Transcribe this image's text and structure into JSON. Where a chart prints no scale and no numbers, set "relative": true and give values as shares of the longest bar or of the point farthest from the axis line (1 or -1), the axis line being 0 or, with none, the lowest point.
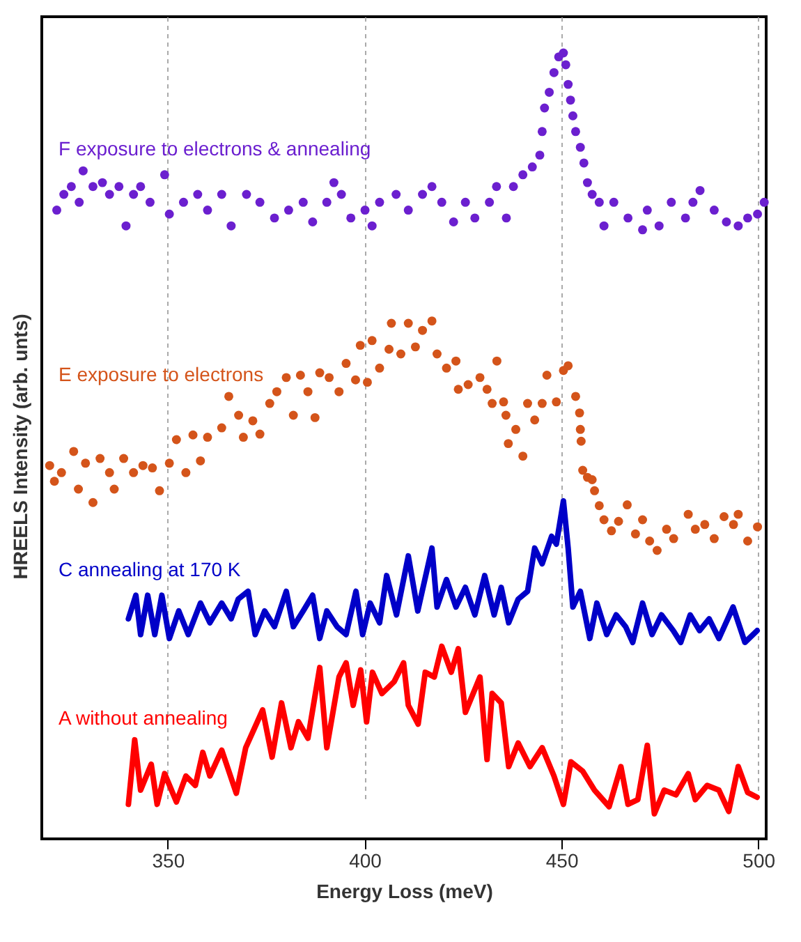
{
  "chart_data": {
    "type": "line",
    "xlabel": "Energy Loss (meV)",
    "ylabel": "HREELS Intensity (arb. unts)",
    "relative": true,
    "xlim": [
      318,
      502
    ],
    "xticks": [
      350,
      400,
      450,
      500
    ],
    "grid": "x",
    "series": [
      {
        "name": "F exposure to electrons & annealing",
        "type": "scatter",
        "marker": "circle",
        "color": "#6b1fcf",
        "x": [
          321.8,
          323.6,
          325.5,
          327.5,
          328.5,
          331,
          333.4,
          335.2,
          337.6,
          339.4,
          341.3,
          343.1,
          345.5,
          349.2,
          350.4,
          354,
          357.6,
          360.1,
          363.7,
          366.1,
          370,
          373.4,
          377.1,
          380.7,
          384.4,
          386.8,
          390.4,
          392.2,
          394.1,
          396.5,
          400.1,
          401.9,
          403.8,
          408,
          411.1,
          414.7,
          417.1,
          419.6,
          422.6,
          425.6,
          428,
          431.7,
          433.5,
          436,
          437.8,
          440.2,
          442.6,
          444.5,
          445.1,
          445.7,
          446.9,
          448.1,
          449.3,
          450.5,
          451.1,
          451.7,
          452.3,
          452.9,
          453.6,
          454.8,
          455.7,
          456.6,
          457.8,
          459.6,
          460.8,
          463.3,
          466.9,
          470.6,
          471.8,
          474.8,
          477.9,
          481.5,
          483.4,
          485.2,
          488.8,
          491.9,
          494.9,
          497.3,
          499.8,
          501.5
        ],
        "values": [
          0.8,
          0.82,
          0.83,
          0.81,
          0.85,
          0.83,
          0.835,
          0.82,
          0.83,
          0.78,
          0.82,
          0.83,
          0.81,
          0.845,
          0.795,
          0.81,
          0.82,
          0.8,
          0.82,
          0.78,
          0.82,
          0.81,
          0.79,
          0.8,
          0.81,
          0.785,
          0.81,
          0.835,
          0.82,
          0.79,
          0.8,
          0.78,
          0.81,
          0.82,
          0.8,
          0.82,
          0.83,
          0.81,
          0.785,
          0.81,
          0.79,
          0.81,
          0.83,
          0.79,
          0.83,
          0.845,
          0.855,
          0.87,
          0.9,
          0.93,
          0.95,
          0.975,
          0.995,
          1.0,
          0.985,
          0.96,
          0.94,
          0.92,
          0.9,
          0.88,
          0.86,
          0.835,
          0.82,
          0.81,
          0.78,
          0.81,
          0.79,
          0.775,
          0.8,
          0.78,
          0.81,
          0.79,
          0.81,
          0.825,
          0.8,
          0.785,
          0.78,
          0.79,
          0.795,
          0.81
        ]
      },
      {
        "name": "E  exposure to electrons",
        "type": "scatter",
        "marker": "circle",
        "color": "#d4541a",
        "x": [
          320,
          321.2,
          323,
          326.1,
          327.3,
          329.1,
          331,
          332.8,
          335.2,
          336.4,
          338.8,
          341.3,
          343.7,
          346.1,
          347.9,
          350.4,
          352.2,
          354.6,
          356.4,
          358.3,
          360.1,
          363.7,
          365.5,
          368,
          369.2,
          371.6,
          373.4,
          375.9,
          377.7,
          380.1,
          381.9,
          383.7,
          385.6,
          387.4,
          388.6,
          391,
          393.5,
          395.3,
          397.7,
          398.9,
          400.7,
          401.9,
          403.8,
          406.2,
          406.8,
          409.2,
          411.1,
          412.9,
          414.7,
          417.1,
          418.4,
          420.8,
          423.2,
          423.8,
          426.3,
          429.3,
          431.1,
          432.4,
          433.6,
          435.3,
          435.9,
          436.5,
          438.4,
          440.2,
          441.4,
          443.2,
          445.1,
          446.3,
          448.7,
          450.5,
          451.7,
          453.6,
          454.6,
          454.8,
          455,
          455.4,
          456.6,
          457.8,
          458.4,
          459.6,
          460.8,
          462.7,
          464.5,
          466.7,
          468.8,
          470.6,
          472.4,
          474.3,
          476.7,
          478.5,
          482.2,
          484,
          486.4,
          488.8,
          491.3,
          493.7,
          494.9,
          497.3,
          499.8
        ],
        "values": [
          0.475,
          0.455,
          0.466,
          0.493,
          0.445,
          0.478,
          0.428,
          0.484,
          0.466,
          0.445,
          0.484,
          0.466,
          0.475,
          0.472,
          0.443,
          0.478,
          0.508,
          0.466,
          0.514,
          0.481,
          0.511,
          0.523,
          0.563,
          0.539,
          0.511,
          0.532,
          0.515,
          0.554,
          0.569,
          0.587,
          0.539,
          0.59,
          0.569,
          0.536,
          0.593,
          0.587,
          0.569,
          0.605,
          0.584,
          0.628,
          0.581,
          0.634,
          0.599,
          0.623,
          0.656,
          0.617,
          0.656,
          0.626,
          0.647,
          0.659,
          0.617,
          0.599,
          0.608,
          0.572,
          0.578,
          0.587,
          0.572,
          0.554,
          0.608,
          0.556,
          0.539,
          0.503,
          0.521,
          0.487,
          0.554,
          0.533,
          0.554,
          0.59,
          0.556,
          0.596,
          0.602,
          0.563,
          0.542,
          0.521,
          0.506,
          0.469,
          0.46,
          0.457,
          0.443,
          0.424,
          0.406,
          0.392,
          0.404,
          0.425,
          0.388,
          0.406,
          0.379,
          0.367,
          0.394,
          0.382,
          0.413,
          0.394,
          0.4,
          0.382,
          0.41,
          0.4,
          0.413,
          0.379,
          0.397
        ]
      },
      {
        "name": "C  annealing at 170 K",
        "marker": "none",
        "color": "#0000c8",
        "x": [
          340,
          341.9,
          343.1,
          344.9,
          346.7,
          348.5,
          350.4,
          352.8,
          355.2,
          358.3,
          360.7,
          363.7,
          366.1,
          367.9,
          370.4,
          372.2,
          374.6,
          377.1,
          380.1,
          381.9,
          384.4,
          386.8,
          388.6,
          390.4,
          393,
          395.3,
          397.8,
          399.5,
          401.4,
          403.8,
          405.6,
          408.1,
          411.1,
          413.5,
          417.1,
          418.4,
          420.8,
          423.2,
          425.6,
          428,
          430.5,
          432.9,
          434.7,
          436.6,
          439,
          441.4,
          443.2,
          445.1,
          447.5,
          448.7,
          450.5,
          451.7,
          452.9,
          454.8,
          457.2,
          459,
          461.5,
          463.9,
          466.3,
          468.1,
          470.6,
          473,
          475.4,
          478.4,
          480.3,
          482.7,
          485.1,
          487.5,
          490,
          493.6,
          496.6,
          499.7
        ],
        "values": [
          0.28,
          0.31,
          0.26,
          0.31,
          0.26,
          0.31,
          0.255,
          0.29,
          0.26,
          0.3,
          0.275,
          0.3,
          0.28,
          0.305,
          0.315,
          0.26,
          0.29,
          0.27,
          0.315,
          0.27,
          0.29,
          0.31,
          0.255,
          0.29,
          0.27,
          0.26,
          0.315,
          0.26,
          0.3,
          0.275,
          0.335,
          0.285,
          0.36,
          0.29,
          0.37,
          0.295,
          0.33,
          0.295,
          0.32,
          0.285,
          0.335,
          0.285,
          0.32,
          0.275,
          0.305,
          0.315,
          0.37,
          0.35,
          0.385,
          0.375,
          0.43,
          0.37,
          0.295,
          0.315,
          0.255,
          0.3,
          0.26,
          0.285,
          0.27,
          0.25,
          0.3,
          0.26,
          0.285,
          0.265,
          0.25,
          0.285,
          0.265,
          0.28,
          0.255,
          0.295,
          0.25,
          0.265
        ]
      },
      {
        "name": "A  without annealing",
        "marker": "none",
        "color": "#ff0000",
        "x": [
          340,
          341.6,
          343.1,
          345.8,
          347.3,
          349.2,
          352.2,
          354.6,
          357,
          358.9,
          360.7,
          363.7,
          367.4,
          369.8,
          374.1,
          376.5,
          378.9,
          381.3,
          383.2,
          385.6,
          388.6,
          390.4,
          393.5,
          395.3,
          397.1,
          399,
          400.5,
          402,
          404.4,
          407.5,
          409.9,
          411.1,
          413.6,
          415.4,
          417.7,
          419.6,
          422,
          423.8,
          425.6,
          429.3,
          431.1,
          432.4,
          434.7,
          436.6,
          439,
          442,
          445.1,
          448.1,
          450.5,
          452.4,
          455.4,
          458.4,
          462.1,
          465.1,
          466.9,
          469.4,
          471.8,
          473.6,
          476.1,
          479.1,
          482.2,
          484,
          487,
          490,
          492.5,
          494.9,
          497.3,
          499.7
        ],
        "values": [
          0.044,
          0.126,
          0.062,
          0.095,
          0.044,
          0.083,
          0.047,
          0.08,
          0.068,
          0.11,
          0.08,
          0.113,
          0.058,
          0.116,
          0.164,
          0.104,
          0.173,
          0.116,
          0.149,
          0.128,
          0.218,
          0.116,
          0.206,
          0.224,
          0.17,
          0.215,
          0.149,
          0.212,
          0.185,
          0.2,
          0.224,
          0.17,
          0.146,
          0.212,
          0.206,
          0.245,
          0.212,
          0.242,
          0.161,
          0.206,
          0.101,
          0.185,
          0.173,
          0.092,
          0.122,
          0.092,
          0.116,
          0.08,
          0.044,
          0.098,
          0.086,
          0.062,
          0.041,
          0.092,
          0.044,
          0.05,
          0.119,
          0.032,
          0.062,
          0.056,
          0.083,
          0.05,
          0.068,
          0.062,
          0.035,
          0.092,
          0.059,
          0.053
        ]
      }
    ]
  }
}
